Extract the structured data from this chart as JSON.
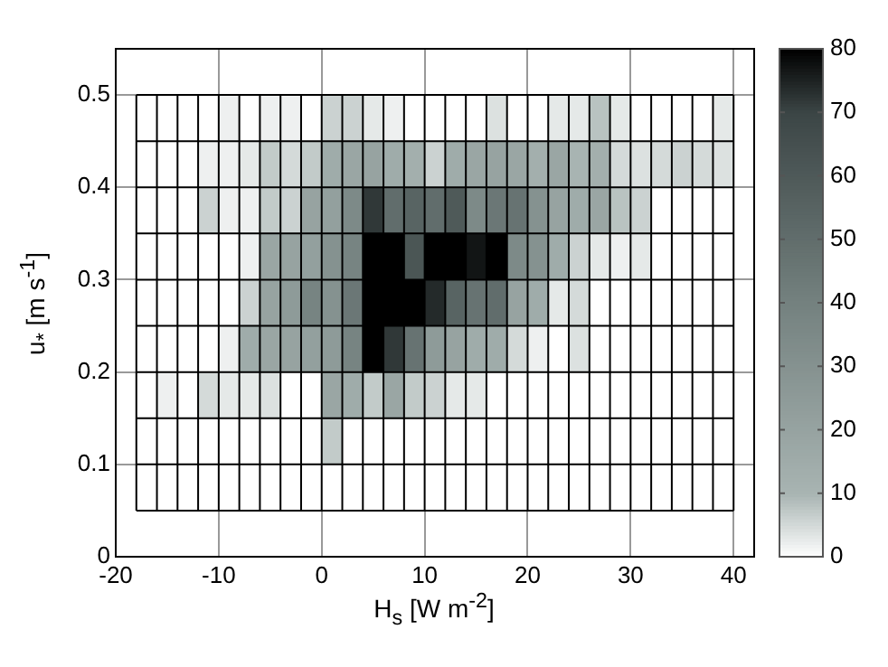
{
  "chart_data": {
    "type": "heatmap",
    "xlabel": "H$_{s}$ [W m$^{-2}$]",
    "ylabel": "u$_{*}$ [m s$^{-1}$]",
    "x": [
      -17,
      -15,
      -13,
      -11,
      -9,
      -7,
      -5,
      -3,
      -1,
      1,
      3,
      5,
      7,
      9,
      11,
      13,
      15,
      17,
      19,
      21,
      23,
      25,
      27,
      29,
      31,
      33,
      35,
      37,
      39
    ],
    "y": [
      0.475,
      0.425,
      0.375,
      0.325,
      0.275,
      0.225,
      0.175,
      0.125,
      0.075
    ],
    "cells": [
      [
        0,
        0,
        0,
        0,
        2,
        0,
        2,
        2,
        0,
        6,
        6,
        3,
        2,
        0,
        0,
        0,
        0,
        4,
        0,
        0,
        3,
        3,
        8,
        3,
        0,
        0,
        0,
        0,
        3
      ],
      [
        0,
        0,
        0,
        2,
        2,
        3,
        7,
        5,
        7,
        15,
        18,
        20,
        15,
        13,
        6,
        15,
        18,
        20,
        18,
        13,
        18,
        10,
        13,
        5,
        4,
        5,
        6,
        5,
        4
      ],
      [
        0,
        0,
        0,
        6,
        2,
        2,
        7,
        6,
        20,
        22,
        35,
        72,
        50,
        55,
        50,
        60,
        35,
        45,
        47,
        30,
        20,
        15,
        18,
        8,
        6,
        0,
        0,
        0,
        0
      ],
      [
        0,
        0,
        0,
        0,
        0,
        2,
        18,
        20,
        22,
        30,
        38,
        80,
        80,
        62,
        80,
        80,
        77,
        80,
        35,
        30,
        15,
        6,
        3,
        2,
        3,
        0,
        0,
        0,
        0
      ],
      [
        0,
        0,
        0,
        0,
        0,
        6,
        20,
        25,
        38,
        30,
        45,
        80,
        80,
        80,
        74,
        55,
        47,
        50,
        20,
        15,
        3,
        5,
        0,
        0,
        0,
        0,
        0,
        0,
        0
      ],
      [
        0,
        0,
        0,
        0,
        2,
        15,
        18,
        20,
        22,
        25,
        38,
        80,
        72,
        47,
        25,
        20,
        15,
        15,
        5,
        2,
        0,
        4,
        0,
        0,
        0,
        0,
        0,
        0,
        0
      ],
      [
        0,
        2,
        0,
        5,
        3,
        3,
        4,
        0,
        0,
        18,
        15,
        7,
        18,
        7,
        6,
        3,
        3,
        0,
        0,
        0,
        0,
        0,
        0,
        0,
        0,
        0,
        0,
        0,
        0
      ],
      [
        0,
        0,
        0,
        0,
        0,
        0,
        0,
        0,
        0,
        7,
        0,
        0,
        0,
        0,
        0,
        0,
        0,
        0,
        0,
        0,
        0,
        0,
        0,
        0,
        0,
        0,
        0,
        0,
        0
      ],
      [
        0,
        0,
        0,
        0,
        0,
        0,
        0,
        0,
        0,
        0,
        0,
        0,
        0,
        0,
        0,
        0,
        0,
        0,
        0,
        0,
        0,
        0,
        0,
        0,
        0,
        0,
        0,
        0,
        0
      ]
    ],
    "xlim": [
      -20,
      42
    ],
    "xticks": [
      -20,
      -10,
      0,
      10,
      20,
      30,
      40
    ],
    "ylim": [
      0,
      0.55
    ],
    "yticks": [
      0,
      0.1,
      0.2,
      0.3,
      0.4,
      0.5
    ],
    "clim": [
      0,
      80
    ],
    "cticks": [
      0,
      10,
      20,
      30,
      40,
      50,
      60,
      70,
      80
    ],
    "grid": true
  }
}
